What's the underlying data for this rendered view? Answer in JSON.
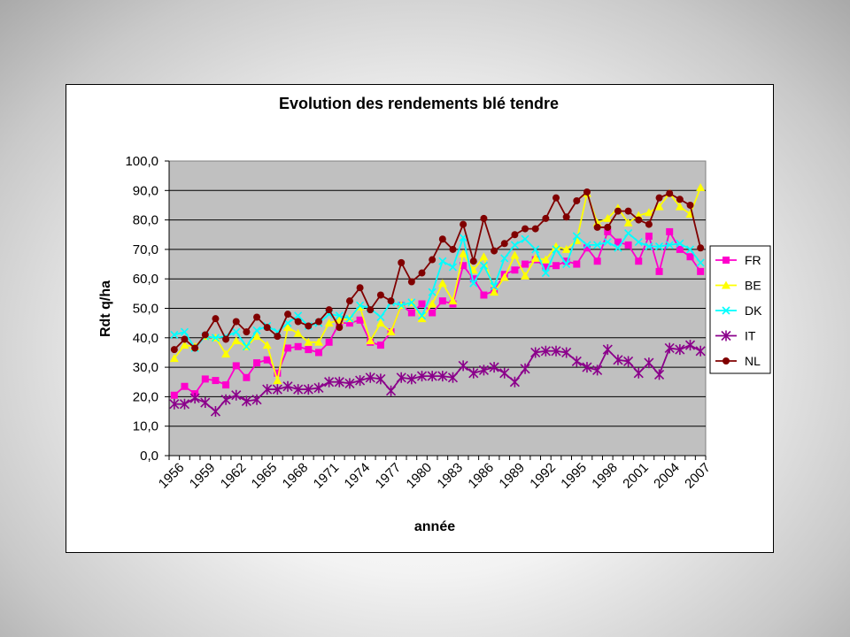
{
  "chart_data": {
    "type": "line",
    "title": "Evolution des rendements blé tendre",
    "xlabel": "année",
    "ylabel": "Rdt q/ha",
    "ylim": [
      0,
      100
    ],
    "yticks": [
      "0,0",
      "10,0",
      "20,0",
      "30,0",
      "40,0",
      "50,0",
      "60,0",
      "70,0",
      "80,0",
      "90,0",
      "100,0"
    ],
    "xtick_labels": [
      "1956",
      "1959",
      "1962",
      "1965",
      "1968",
      "1971",
      "1974",
      "1977",
      "1980",
      "1983",
      "1986",
      "1989",
      "1992",
      "1995",
      "1998",
      "2001",
      "2004",
      "2007"
    ],
    "x": [
      1956,
      1957,
      1958,
      1959,
      1960,
      1961,
      1962,
      1963,
      1964,
      1965,
      1966,
      1967,
      1968,
      1969,
      1970,
      1971,
      1972,
      1973,
      1974,
      1975,
      1976,
      1977,
      1978,
      1979,
      1980,
      1981,
      1982,
      1983,
      1984,
      1985,
      1986,
      1987,
      1988,
      1989,
      1990,
      1991,
      1992,
      1993,
      1994,
      1995,
      1996,
      1997,
      1998,
      1999,
      2000,
      2001,
      2002,
      2003,
      2004,
      2005,
      2006,
      2007
    ],
    "grid": "horizontal",
    "legend_position": "right",
    "series": [
      {
        "name": "FR",
        "color": "#ff00cc",
        "marker": "square",
        "values": [
          20.5,
          23.5,
          21,
          26,
          25.5,
          24,
          30.5,
          26.5,
          31.5,
          32.5,
          28,
          36.5,
          37,
          36,
          35,
          38.5,
          45,
          45,
          46,
          38.5,
          37.5,
          42,
          51,
          48.5,
          51.5,
          48.5,
          52.5,
          51.5,
          64.5,
          60,
          54.5,
          56,
          61.5,
          63,
          65,
          66.5,
          64,
          64.5,
          66,
          65,
          70.5,
          66,
          76,
          72.5,
          71.5,
          66,
          74.5,
          62.5,
          76,
          70,
          67.5,
          62.5
        ]
      },
      {
        "name": "BE",
        "color": "#ffff00",
        "marker": "triangle",
        "values": [
          33,
          37.5,
          37,
          40.5,
          40,
          34.5,
          39,
          37,
          40.5,
          37.5,
          25.5,
          43.5,
          41.5,
          38.5,
          38.5,
          45,
          46,
          46.5,
          50.5,
          39,
          45,
          42,
          51,
          52,
          46.5,
          51.5,
          58.5,
          52.5,
          68.5,
          63,
          67.5,
          55.5,
          60.5,
          68,
          61,
          67,
          66.5,
          71,
          70,
          73,
          89,
          79,
          80.5,
          84,
          79,
          81.5,
          82.5,
          84.5,
          89,
          84.5,
          82,
          91
        ]
      },
      {
        "name": "DK",
        "color": "#00ffff",
        "marker": "x",
        "values": [
          41,
          42,
          36.5,
          40.5,
          40,
          40.5,
          42,
          37,
          42.5,
          44,
          42,
          45,
          47.5,
          44,
          45,
          48,
          47.5,
          46.5,
          51,
          50,
          47,
          52,
          51,
          52,
          47.5,
          55.5,
          66,
          64,
          74,
          58.5,
          64.5,
          57.5,
          67,
          71.5,
          73.5,
          70,
          62,
          70,
          65,
          74.5,
          71.5,
          71.5,
          72.5,
          70.5,
          75.5,
          72.5,
          71,
          71,
          71.5,
          72,
          70,
          65.5
        ]
      },
      {
        "name": "IT",
        "color": "#8b008b",
        "marker": "star",
        "values": [
          17.5,
          17.5,
          19.5,
          18,
          15,
          19,
          20.5,
          18.5,
          19,
          22.5,
          22.5,
          23.5,
          22.5,
          22.5,
          23,
          25,
          25,
          24.5,
          25.5,
          26.5,
          26,
          22,
          26.5,
          26,
          27,
          27,
          27,
          26.5,
          30.5,
          28,
          29,
          30,
          28,
          25,
          29.5,
          35,
          35.5,
          35.5,
          35,
          32,
          30,
          29,
          36,
          32.5,
          32,
          28,
          31.5,
          27.5,
          36.5,
          36,
          37.5,
          35.5
        ]
      },
      {
        "name": "NL",
        "color": "#800000",
        "marker": "circle",
        "values": [
          36,
          39.5,
          36.5,
          41,
          46.5,
          39.5,
          45.5,
          42,
          47,
          43.5,
          40.5,
          48,
          45.5,
          44,
          45.5,
          49.5,
          43.5,
          52.5,
          57,
          49.5,
          54.5,
          52.5,
          65.5,
          59,
          62,
          66.5,
          73.5,
          70,
          78.5,
          66,
          80.5,
          69.5,
          72,
          75,
          77,
          77,
          80.5,
          87.5,
          81,
          86.5,
          89.5,
          77.5,
          77.5,
          83,
          83,
          80,
          78.5,
          87.5,
          89,
          87,
          85,
          70.5
        ]
      }
    ]
  }
}
